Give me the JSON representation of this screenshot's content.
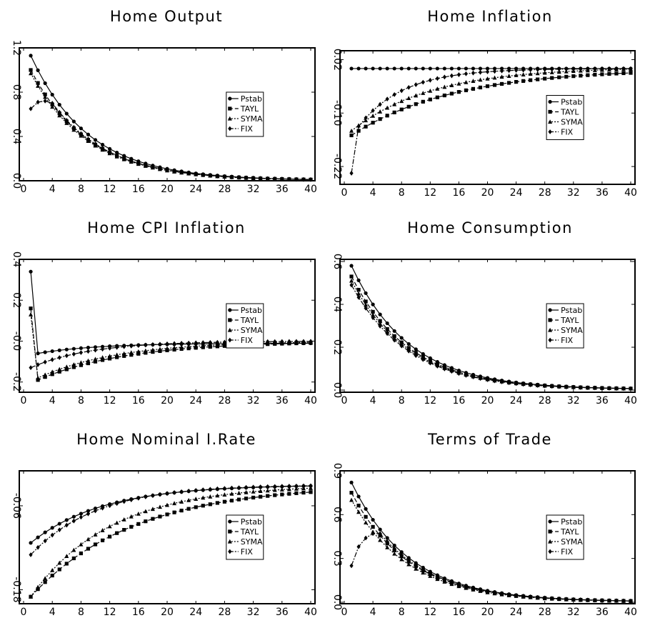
{
  "chart_data": [
    {
      "type": "line",
      "title": "Home Output",
      "ylim": [
        0.0,
        1.2
      ],
      "yticks": [
        0.0,
        0.4,
        0.8,
        1.2
      ],
      "ytick_labels": [
        "0.0",
        "0.4",
        "0.8",
        "1.2"
      ],
      "xlim": [
        0,
        40
      ],
      "xticks": [
        0,
        4,
        8,
        12,
        16,
        20,
        24,
        28,
        32,
        36,
        40
      ],
      "xtick_labels": [
        "0",
        "4",
        "8",
        "12",
        "16",
        "20",
        "24",
        "28",
        "32",
        "36",
        "40"
      ],
      "legend": "center-right",
      "series": [
        {
          "name": "Pstab",
          "start": 1.13,
          "end": 0.003,
          "rate": 0.125
        },
        {
          "name": "TAYL",
          "start": 1.0,
          "end": 0.003,
          "rate": 0.125
        },
        {
          "name": "SYMA",
          "start": 0.97,
          "end": 0.003,
          "rate": 0.125
        },
        {
          "name": "FIX",
          "values": [
            0.65,
            0.71,
            0.72,
            0.7
          ],
          "end": 0.003,
          "rate": 0.125
        }
      ]
    },
    {
      "type": "line",
      "title": "Home  Inflation",
      "ylim": [
        -0.26,
        0.04
      ],
      "yticks": [
        -0.22,
        -0.1,
        0.02
      ],
      "ytick_labels": [
        "-0.22",
        "-0.10",
        "0.02"
      ],
      "xlim": [
        0,
        40
      ],
      "xticks": [
        0,
        4,
        8,
        12,
        16,
        20,
        24,
        28,
        32,
        36,
        40
      ],
      "xtick_labels": [
        "0",
        "4",
        "8",
        "12",
        "16",
        "20",
        "24",
        "28",
        "32",
        "36",
        "40"
      ],
      "legend": "center-right",
      "series": [
        {
          "name": "Pstab",
          "start": 0.0,
          "end": 0.0,
          "rate": 0.1
        },
        {
          "name": "TAYL",
          "start": -0.15,
          "end": 0.0,
          "rate": 0.07
        },
        {
          "name": "SYMA",
          "start": -0.14,
          "end": 0.003,
          "rate": 0.09
        },
        {
          "name": "FIX",
          "values": [
            -0.235,
            -0.13
          ],
          "end": 0.0,
          "rate": 0.16
        }
      ]
    },
    {
      "type": "line",
      "title": "Home   CPI Inflation",
      "ylim": [
        -0.25,
        0.4
      ],
      "yticks": [
        -0.2,
        0.0,
        0.2,
        0.4
      ],
      "ytick_labels": [
        "-0.2",
        "-0.0",
        "0.2",
        "0.4"
      ],
      "xlim": [
        0,
        40
      ],
      "xticks": [
        0,
        4,
        8,
        12,
        16,
        20,
        24,
        28,
        32,
        36,
        40
      ],
      "xtick_labels": [
        "0",
        "4",
        "8",
        "12",
        "16",
        "20",
        "24",
        "28",
        "32",
        "36",
        "40"
      ],
      "legend": "center-right",
      "series": [
        {
          "name": "Pstab",
          "values": [
            0.34,
            -0.06
          ],
          "end": -0.01,
          "rate": 0.12
        },
        {
          "name": "TAYL",
          "values": [
            0.16,
            -0.19
          ],
          "end": 0.0,
          "rate": 0.08
        },
        {
          "name": "SYMA",
          "values": [
            0.13,
            -0.18
          ],
          "end": 0.0,
          "rate": 0.09
        },
        {
          "name": "FIX",
          "values": [
            -0.13
          ],
          "end": 0.0,
          "rate": 0.12
        }
      ]
    },
    {
      "type": "line",
      "title": "Home  Consumption",
      "ylim": [
        -0.01,
        0.61
      ],
      "yticks": [
        0.0,
        0.2,
        0.4,
        0.6
      ],
      "ytick_labels": [
        "0.0",
        "0.2",
        "0.4",
        "0.6"
      ],
      "xlim": [
        0,
        40
      ],
      "xticks": [
        0,
        4,
        8,
        12,
        16,
        20,
        24,
        28,
        32,
        36,
        40
      ],
      "xtick_labels": [
        "0",
        "4",
        "8",
        "12",
        "16",
        "20",
        "24",
        "28",
        "32",
        "36",
        "40"
      ],
      "legend": "center-right",
      "series": [
        {
          "name": "Pstab",
          "start": 0.58,
          "end": 0.003,
          "rate": 0.125
        },
        {
          "name": "TAYL",
          "start": 0.53,
          "end": 0.003,
          "rate": 0.125
        },
        {
          "name": "SYMA",
          "start": 0.51,
          "end": 0.003,
          "rate": 0.125
        },
        {
          "name": "FIX",
          "start": 0.49,
          "end": 0.003,
          "rate": 0.125
        }
      ]
    },
    {
      "type": "line",
      "title": "Home  Nominal  I.Rate",
      "ylim": [
        -0.2,
        -0.01
      ],
      "yticks": [
        -0.18,
        -0.06
      ],
      "ytick_labels": [
        "-0.18",
        "-0.06"
      ],
      "xlim": [
        0,
        40
      ],
      "xticks": [
        0,
        4,
        8,
        12,
        16,
        20,
        24,
        28,
        32,
        36,
        40
      ],
      "xtick_labels": [
        "0",
        "4",
        "8",
        "12",
        "16",
        "20",
        "24",
        "28",
        "32",
        "36",
        "40"
      ],
      "legend": "center-right",
      "series": [
        {
          "name": "Pstab",
          "start": -0.113,
          "end": -0.03,
          "rate": 0.1
        },
        {
          "name": "TAYL",
          "start": -0.19,
          "end": -0.03,
          "rate": 0.07
        },
        {
          "name": "SYMA",
          "start": -0.19,
          "end": -0.03,
          "rate": 0.09
        },
        {
          "name": "FIX",
          "start": -0.13,
          "end": -0.03,
          "rate": 0.11
        }
      ]
    },
    {
      "type": "line",
      "title": "Terms  of  Trade",
      "ylim": [
        -0.01,
        0.9
      ],
      "yticks": [
        0.0,
        0.3,
        0.6,
        0.9
      ],
      "ytick_labels": [
        "0.0",
        "0.3",
        "0.6",
        "0.9"
      ],
      "xlim": [
        0,
        40
      ],
      "xticks": [
        0,
        4,
        8,
        12,
        16,
        20,
        24,
        28,
        32,
        36,
        40
      ],
      "xtick_labels": [
        "0",
        "4",
        "8",
        "12",
        "16",
        "20",
        "24",
        "28",
        "32",
        "36",
        "40"
      ],
      "legend": "center-right",
      "series": [
        {
          "name": "Pstab",
          "start": 0.82,
          "end": 0.003,
          "rate": 0.125
        },
        {
          "name": "TAYL",
          "start": 0.75,
          "end": 0.003,
          "rate": 0.125
        },
        {
          "name": "SYMA",
          "start": 0.7,
          "end": 0.003,
          "rate": 0.125
        },
        {
          "name": "FIX",
          "values": [
            0.25,
            0.38,
            0.44,
            0.47,
            0.47
          ],
          "end": 0.003,
          "rate": 0.125
        }
      ]
    }
  ]
}
